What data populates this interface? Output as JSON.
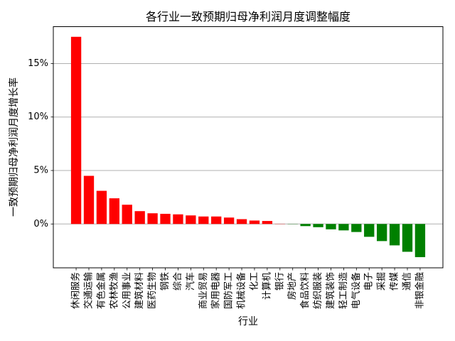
{
  "chart_data": {
    "type": "bar",
    "title": "各行业一致预期归母净利润月度调整幅度",
    "xlabel": "行业",
    "ylabel": "一致预期归母净利润月度增长率",
    "categories": [
      "休闲服务",
      "交通运输",
      "有色金属",
      "农林牧渔",
      "公用事业",
      "建筑材料",
      "医药生物",
      "钢铁",
      "综合",
      "汽车",
      "商业贸易",
      "家用电器",
      "国防军工",
      "机械设备",
      "化工",
      "计算机",
      "银行",
      "房地产",
      "食品饮料",
      "纺织服装",
      "建筑装饰",
      "轻工制造",
      "电气设备",
      "电子",
      "采掘",
      "传媒",
      "通信",
      "非银金融"
    ],
    "values": [
      17.5,
      4.5,
      3.1,
      2.4,
      1.8,
      1.2,
      1.0,
      0.95,
      0.9,
      0.8,
      0.7,
      0.7,
      0.6,
      0.45,
      0.32,
      0.28,
      0.02,
      -0.02,
      -0.2,
      -0.3,
      -0.5,
      -0.6,
      -0.75,
      -1.2,
      -1.6,
      -2.0,
      -2.6,
      -3.1
    ],
    "value_unit": "%",
    "ylim": [
      -4.1,
      18.45
    ],
    "yticks": [
      {
        "value": 0,
        "label": "0%"
      },
      {
        "value": 5,
        "label": "5%"
      },
      {
        "value": 10,
        "label": "10%"
      },
      {
        "value": 15,
        "label": "15%"
      }
    ],
    "grid": "horizontal",
    "legend": "none",
    "colors": {
      "positive_bar": "#ff0000",
      "negative_bar": "#008000",
      "gridline": "#b0b0b0",
      "spine": "#000000",
      "text": "#000000",
      "background": "#ffffff"
    }
  }
}
